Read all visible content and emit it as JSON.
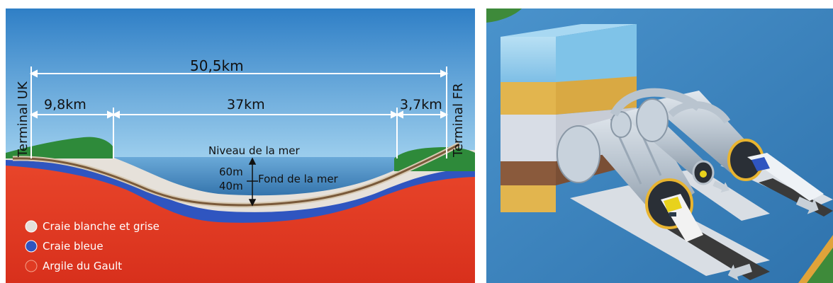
{
  "cross_section": {
    "distances": {
      "total": "50,5km",
      "uk_section": "9,8km",
      "sea_section": "37km",
      "fr_section": "3,7km"
    },
    "terminals": {
      "uk": "Terminal UK",
      "fr": "Terminal FR"
    },
    "depths": {
      "sea_level": "Niveau de la mer",
      "water_depth": "60m",
      "seabed_depth": "40m",
      "seabed": "Fond de la mer"
    },
    "legend": [
      {
        "label": "Craie blanche et grise",
        "color": "#e4e0db"
      },
      {
        "label": "Craie bleue",
        "color": "#2f55c0"
      },
      {
        "label": "Argile du Gault",
        "color": "#e03a22"
      }
    ],
    "colors": {
      "sky": "#5aa2d8",
      "sea": "#4a8fc8",
      "clay": "#e23a22",
      "blue_chalk": "#2f55c0",
      "white_chalk": "#e6e1da",
      "land": "#2e8a3a",
      "tunnel": "#7a5a3a"
    }
  },
  "illustration": {
    "kind": "tunnel-cutaway",
    "tubes": [
      "rail-tunnel-left",
      "service-tunnel",
      "rail-tunnel-right"
    ],
    "colors": {
      "background": "#3f86c2",
      "water_block": "#8cc8ea",
      "sand_layer": "#e2b54e",
      "chalk_layer": "#d8dde6",
      "clay_layer": "#8a5a3c",
      "tube": "#c2ccd6",
      "train_yellow": "#e8d21c"
    }
  }
}
